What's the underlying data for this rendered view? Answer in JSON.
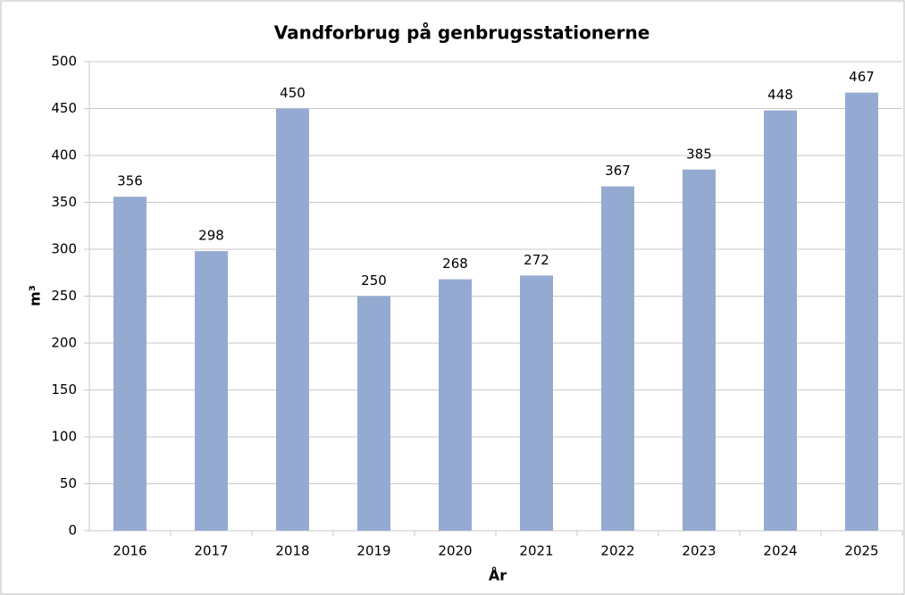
{
  "chart_data": {
    "type": "bar",
    "title": "Vandforbrug på genbrugsstationerne",
    "x_label": "År",
    "y_label": "m³",
    "categories": [
      "2016",
      "2017",
      "2018",
      "2019",
      "2020",
      "2021",
      "2022",
      "2023",
      "2024",
      "2025"
    ],
    "values": [
      356,
      298,
      450,
      250,
      268,
      272,
      367,
      385,
      448,
      467
    ],
    "color": "#95aad1",
    "ylim": [
      0,
      500
    ],
    "yticks": [
      0,
      50,
      100,
      150,
      200,
      250,
      300,
      350,
      400,
      450,
      500
    ],
    "grid": true
  }
}
